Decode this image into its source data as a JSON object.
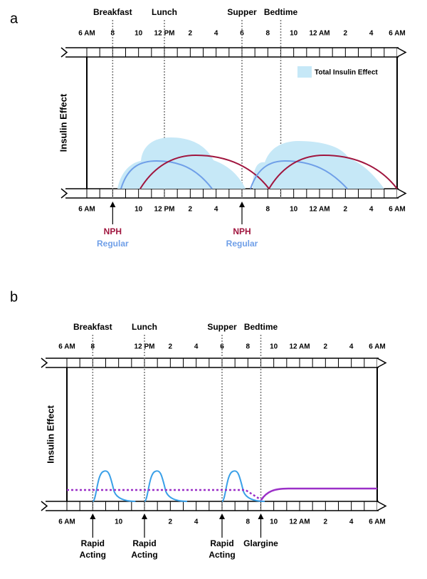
{
  "panels": [
    {
      "letter": "a",
      "meals": [
        "Breakfast",
        "Lunch",
        "Supper",
        "Bedtime"
      ],
      "top_times": [
        "6 AM",
        "8",
        "10",
        "12 PM",
        "2",
        "4",
        "6",
        "8",
        "10",
        "12 AM",
        "2",
        "4",
        "6 AM"
      ],
      "bottom_times": [
        "6 AM",
        null,
        "10",
        "12 PM",
        "2",
        "4",
        null,
        "8",
        "10",
        "12 AM",
        "2",
        "4",
        "6 AM"
      ],
      "y_label": "Insulin Effect",
      "legend": "Total Insulin Effect",
      "injections": [
        [
          "NPH",
          "Regular"
        ],
        [
          "NPH",
          "Regular"
        ]
      ]
    },
    {
      "letter": "b",
      "meals": [
        "Breakfast",
        "Lunch",
        "Supper",
        "Bedtime"
      ],
      "top_times": [
        "6 AM",
        "8",
        null,
        "12 PM",
        "2",
        "4",
        "6",
        "8",
        "10",
        "12 AM",
        "2",
        "4",
        "6 AM"
      ],
      "bottom_times": [
        "6 AM",
        null,
        "10",
        null,
        "2",
        "4",
        null,
        "8",
        "10",
        "12 AM",
        "2",
        "4",
        "6 AM"
      ],
      "y_label": "Insulin Effect",
      "injections": [
        [
          "Rapid",
          "Acting"
        ],
        [
          "Rapid",
          "Acting"
        ],
        [
          "Rapid",
          "Acting"
        ],
        [
          "Glargine"
        ]
      ]
    }
  ]
}
